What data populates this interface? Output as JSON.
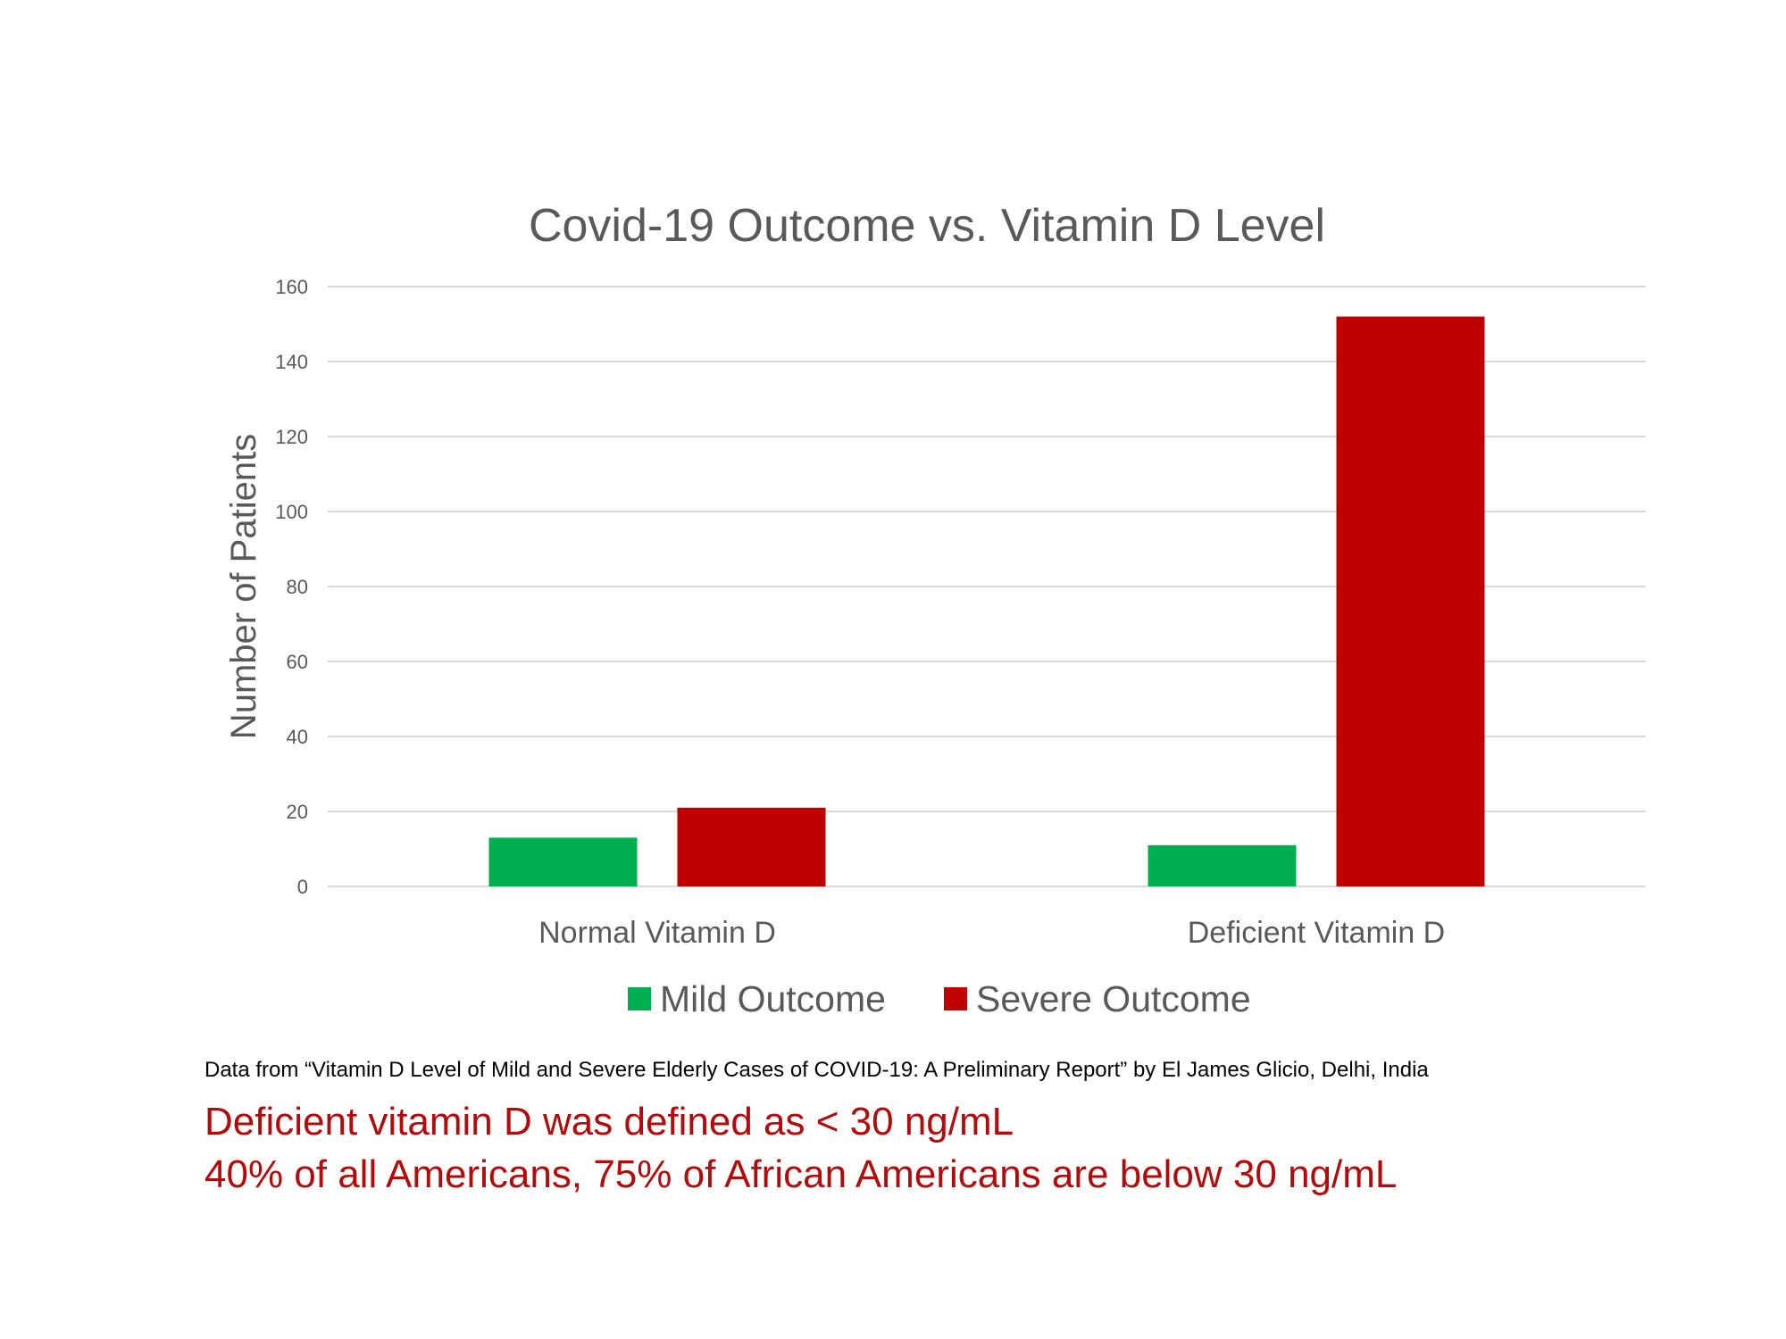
{
  "chart_data": {
    "type": "bar",
    "title": "Covid-19 Outcome vs. Vitamin D Level",
    "xlabel": "",
    "ylabel": "Number of Patients",
    "categories": [
      "Normal Vitamin D",
      "Deficient Vitamin D"
    ],
    "series": [
      {
        "name": "Mild Outcome",
        "values": [
          13,
          11
        ],
        "color": "#00b050"
      },
      {
        "name": "Severe Outcome",
        "values": [
          21,
          152
        ],
        "color": "#c00000"
      }
    ],
    "ylim": [
      0,
      160
    ],
    "yticks": [
      0,
      20,
      40,
      60,
      80,
      100,
      120,
      140,
      160
    ],
    "grid": true,
    "legend_position": "bottom"
  },
  "source_note": "Data from “Vitamin D Level of Mild and Severe Elderly Cases of COVID-19: A Preliminary Report” by El James Glicio, Delhi, India",
  "notes": [
    "Deficient vitamin D was defined as < 30 ng/mL",
    "40% of all Americans, 75% of African Americans are below 30 ng/mL"
  ]
}
